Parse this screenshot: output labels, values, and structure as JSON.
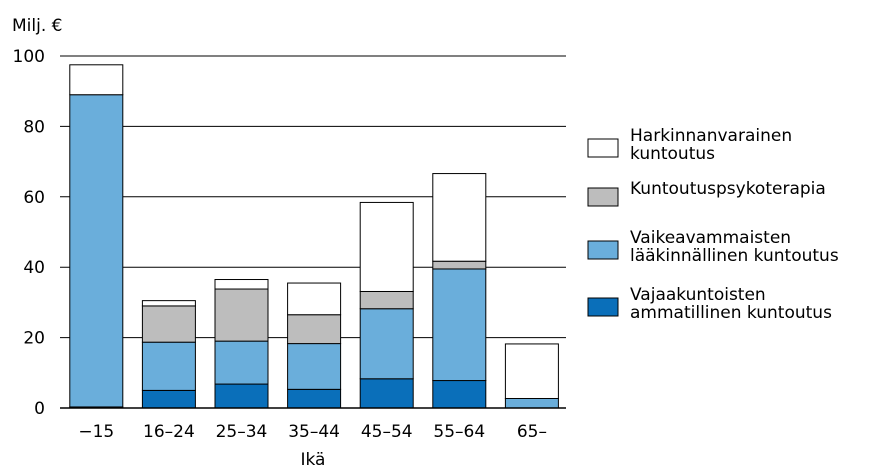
{
  "chart_data": {
    "type": "bar",
    "stacked": true,
    "ylabel": "Milj. €",
    "xlabel": "Ikä",
    "ylim": [
      0,
      100
    ],
    "yticks": [
      0,
      20,
      40,
      60,
      80,
      100
    ],
    "grid": true,
    "legend_placement": "right",
    "categories": [
      "−15",
      "16–24",
      "25–34",
      "35–44",
      "45–54",
      "55–64",
      "65–"
    ],
    "series": [
      {
        "name": "Vajaakuntoisten ammatillinen kuntoutus",
        "name_lines": [
          "Vajaakuntoisten",
          "ammatillinen kuntoutus"
        ],
        "color": "#0a6fba",
        "values": [
          0.3,
          5,
          6.8,
          5.3,
          8.3,
          7.8,
          0
        ]
      },
      {
        "name": "Vaikeavammaisten lääkinnällinen kuntoutus",
        "name_lines": [
          "Vaikeavammaisten",
          "lääkinnällinen kuntoutus"
        ],
        "color": "#6aaedb",
        "values": [
          88.7,
          13.7,
          12.2,
          13,
          19.9,
          31.7,
          2.7
        ]
      },
      {
        "name": "Kuntoutuspsykoterapia",
        "name_lines": [
          "Kuntoutuspsykoterapia"
        ],
        "color": "#bdbdbd",
        "values": [
          0,
          10.3,
          14.8,
          8.2,
          4.9,
          2.2,
          0
        ]
      },
      {
        "name": "Harkinnanvarainen kuntoutus",
        "name_lines": [
          "Harkinnanvarainen",
          "kuntoutus"
        ],
        "color": "#ffffff",
        "values": [
          8.5,
          1.5,
          2.7,
          9,
          25.3,
          24.9,
          15.5
        ]
      }
    ]
  }
}
